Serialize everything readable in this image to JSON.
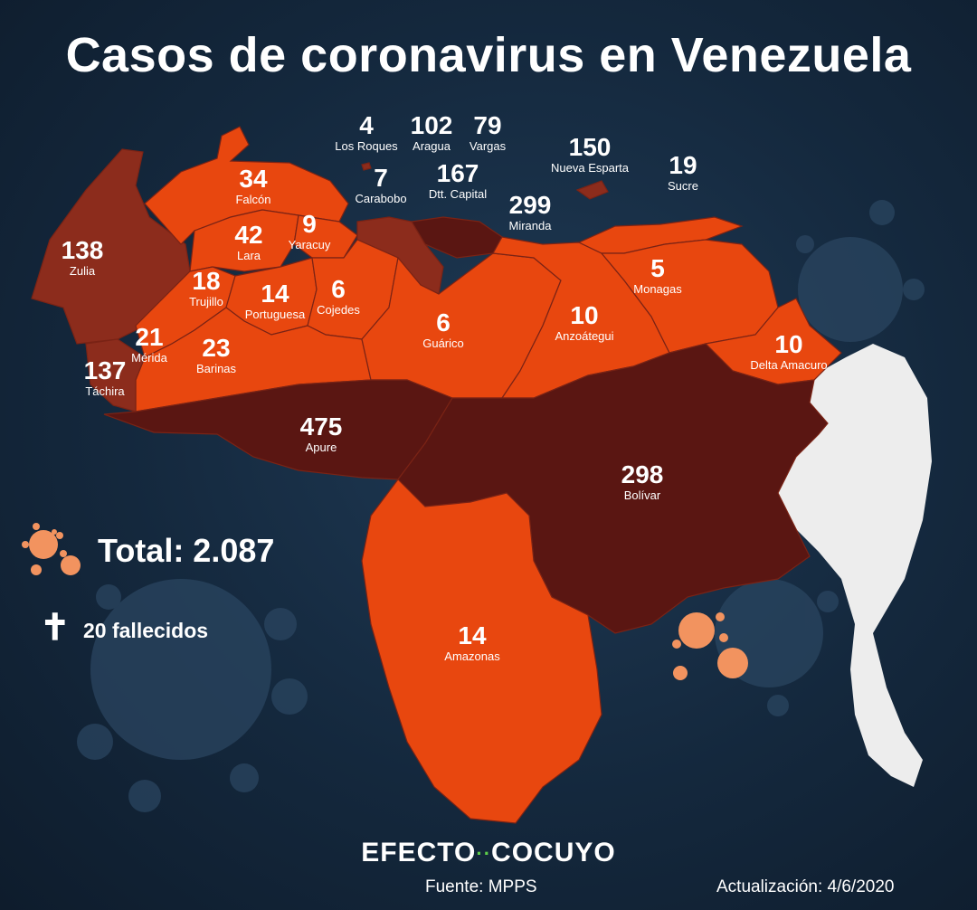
{
  "title": "Casos de coronavirus en Venezuela",
  "total": "Total: 2.087",
  "deaths": "20 fallecidos",
  "brand": {
    "left": "EFECTO",
    "right": "COCUYO"
  },
  "source": "Fuente: MPPS",
  "updated": "Actualización: 4/6/2020",
  "colors": {
    "background": "#14283d",
    "low": "#e8470f",
    "mid": "#8c2c1c",
    "high": "#5a1612",
    "neighbor": "#ededed",
    "virus": "#f2935f"
  },
  "regions": [
    {
      "id": "zulia",
      "name": "Zulia",
      "cases": "138"
    },
    {
      "id": "tachira",
      "name": "Táchira",
      "cases": "137"
    },
    {
      "id": "merida",
      "name": "Mérida",
      "cases": "21"
    },
    {
      "id": "trujillo",
      "name": "Trujillo",
      "cases": "18"
    },
    {
      "id": "falcon",
      "name": "Falcón",
      "cases": "34"
    },
    {
      "id": "lara",
      "name": "Lara",
      "cases": "42"
    },
    {
      "id": "yaracuy",
      "name": "Yaracuy",
      "cases": "9"
    },
    {
      "id": "portuguesa",
      "name": "Portuguesa",
      "cases": "14"
    },
    {
      "id": "cojedes",
      "name": "Cojedes",
      "cases": "6"
    },
    {
      "id": "barinas",
      "name": "Barinas",
      "cases": "23"
    },
    {
      "id": "apure",
      "name": "Apure",
      "cases": "475"
    },
    {
      "id": "guarico",
      "name": "Guárico",
      "cases": "6"
    },
    {
      "id": "anzoategui",
      "name": "Anzoátegui",
      "cases": "10"
    },
    {
      "id": "monagas",
      "name": "Monagas",
      "cases": "5"
    },
    {
      "id": "delta",
      "name": "Delta Amacuro",
      "cases": "10"
    },
    {
      "id": "bolivar",
      "name": "Bolívar",
      "cases": "298"
    },
    {
      "id": "amazonas",
      "name": "Amazonas",
      "cases": "14"
    },
    {
      "id": "losroques",
      "name": "Los Roques",
      "cases": "4"
    },
    {
      "id": "aragua",
      "name": "Aragua",
      "cases": "102"
    },
    {
      "id": "vargas",
      "name": "Vargas",
      "cases": "79"
    },
    {
      "id": "carabobo",
      "name": "Carabobo",
      "cases": "7"
    },
    {
      "id": "capital",
      "name": "Dtt. Capital",
      "cases": "167"
    },
    {
      "id": "miranda",
      "name": "Miranda",
      "cases": "299"
    },
    {
      "id": "nuevaesparta",
      "name": "Nueva Esparta",
      "cases": "150"
    },
    {
      "id": "sucre",
      "name": "Sucre",
      "cases": "19"
    }
  ]
}
